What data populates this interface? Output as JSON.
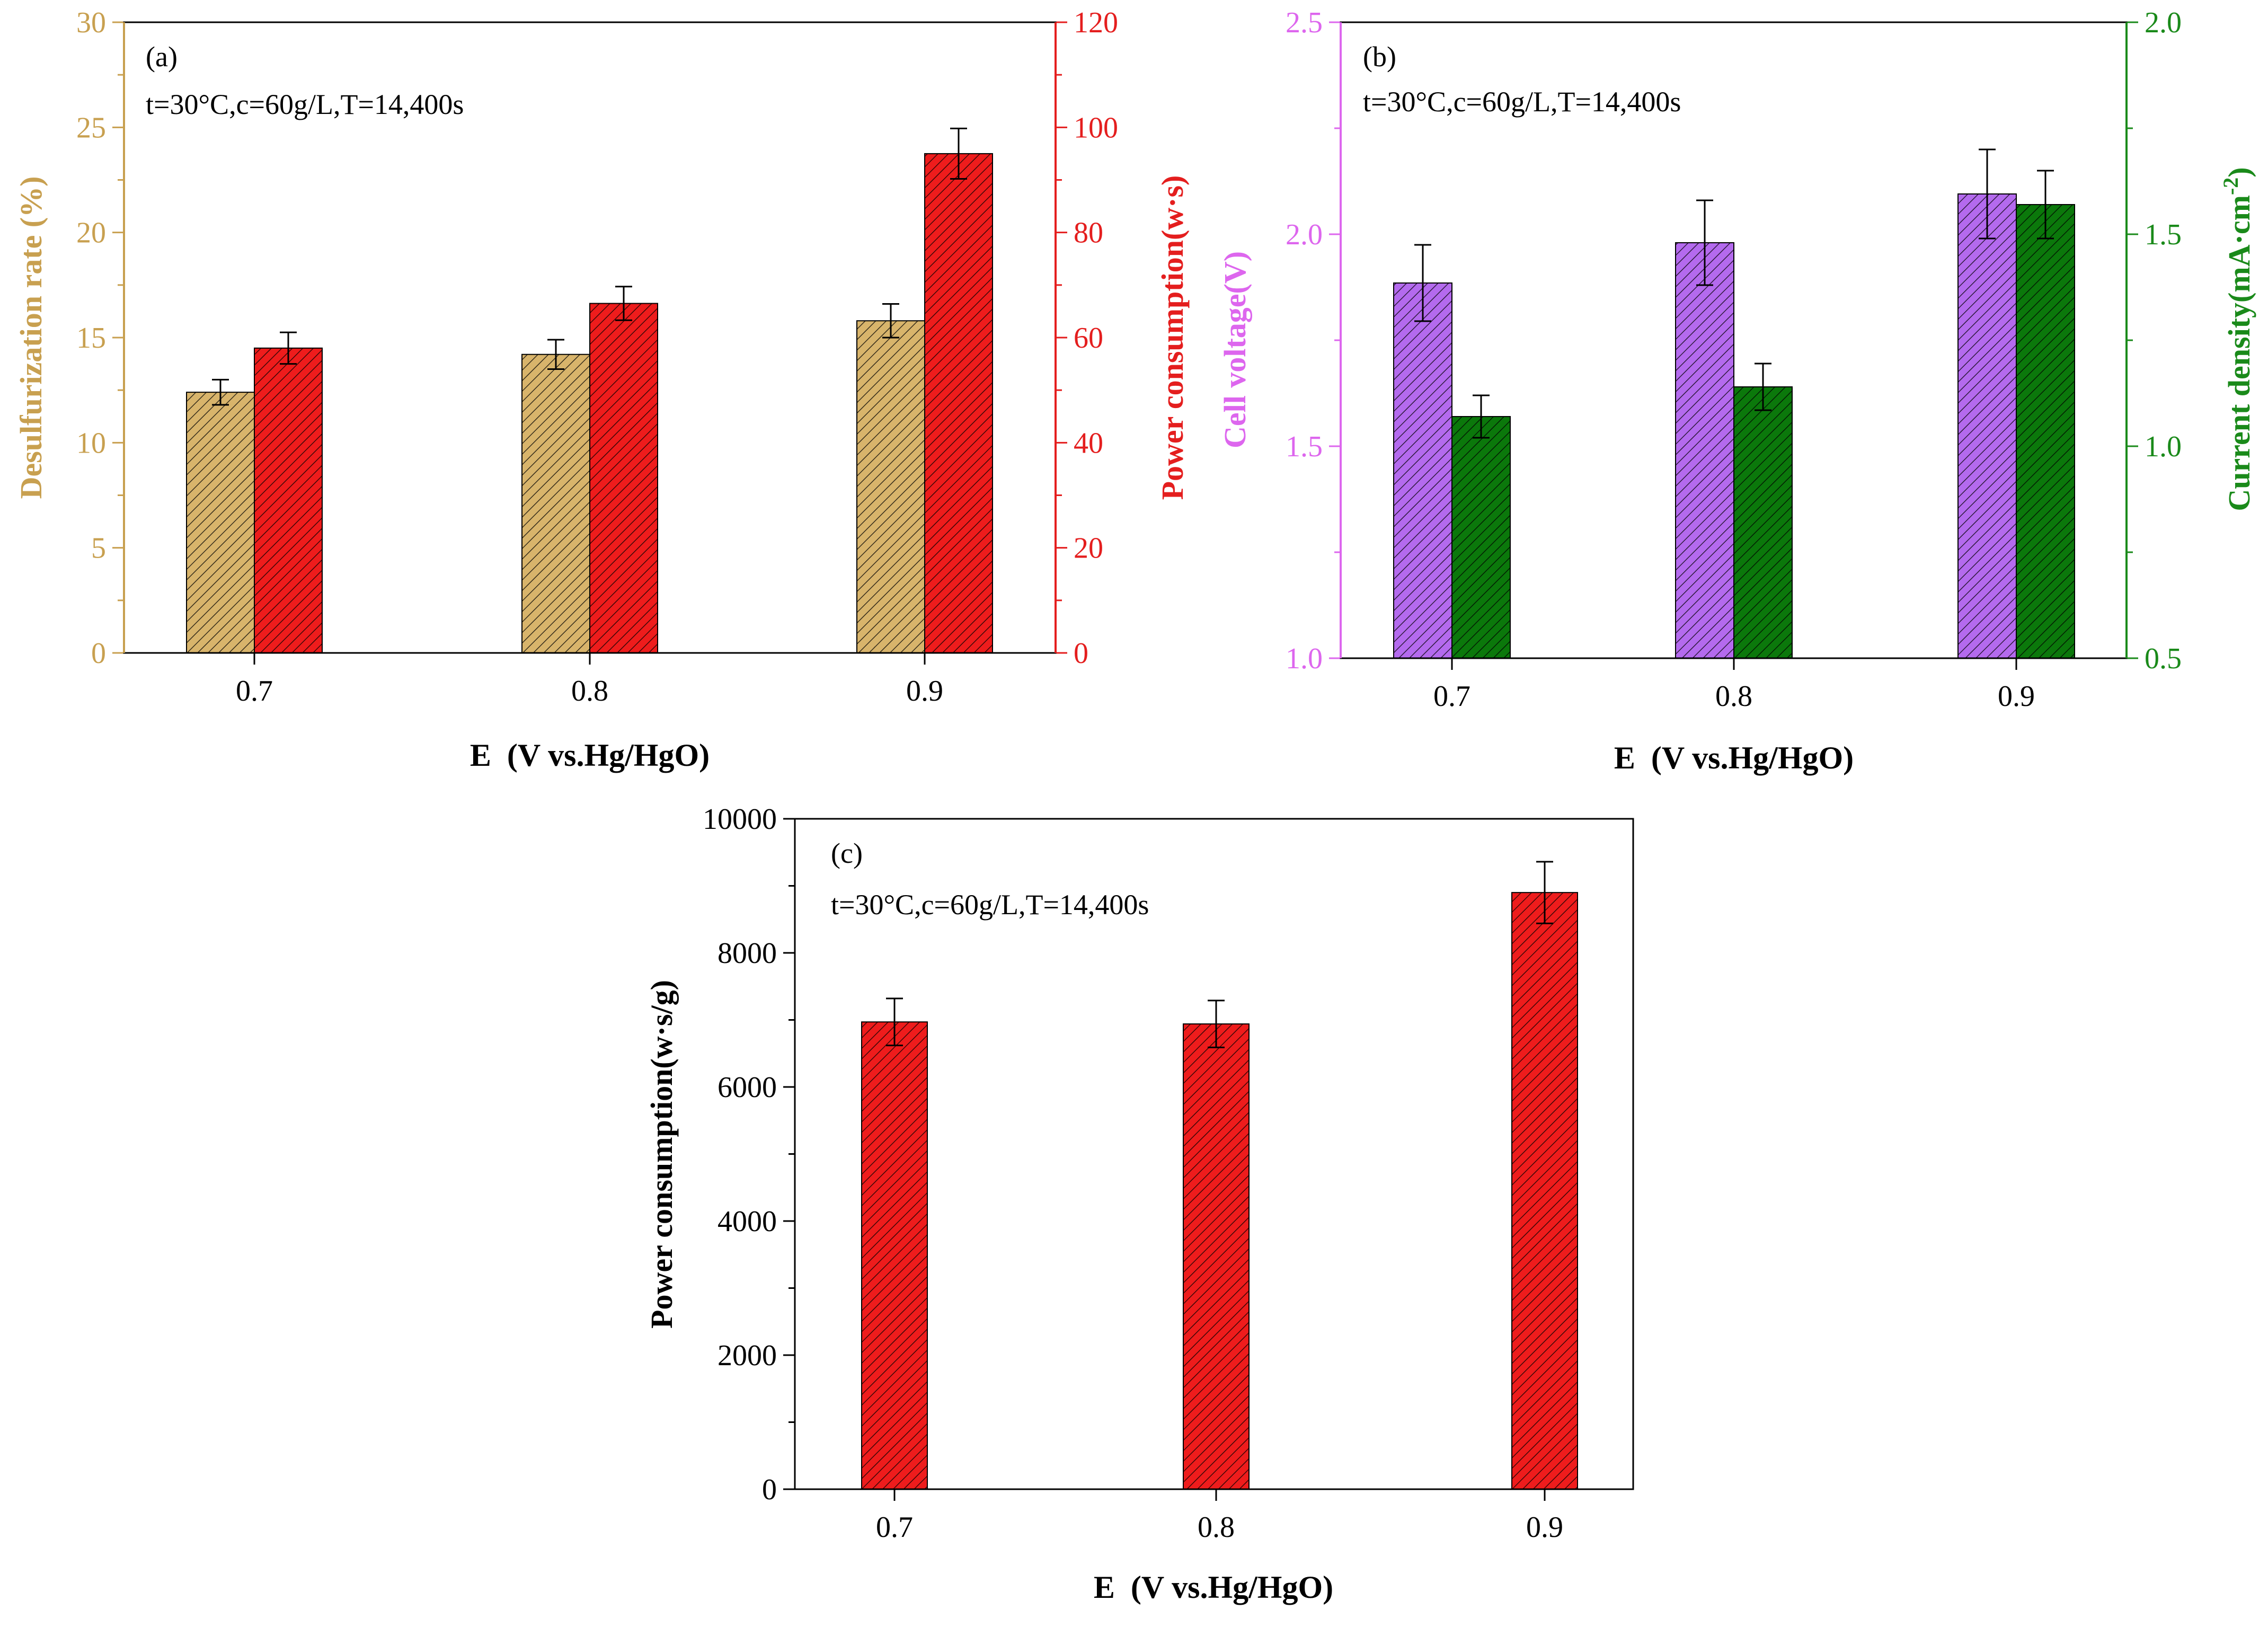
{
  "colors": {
    "desulf": "#D8B46B",
    "power": "#EE1C1C",
    "cell_voltage": "#B46AEE",
    "current_density": "#0B780B",
    "desulf_axis": "#C8A050",
    "power_axis": "#E41E1E",
    "cell_voltage_axis": "#DD66EE",
    "current_density_axis": "#1A8A1A",
    "black": "#000000"
  },
  "chart_data": [
    {
      "id": "a",
      "type": "bar",
      "panel_label": "(a)",
      "condition_text": "t=30°C,c=60g/L,T=14,400s",
      "xlabel": "E  (V vs.Hg/HgO)",
      "categories": [
        "0.7",
        "0.8",
        "0.9"
      ],
      "y_left": {
        "label": "Desulfurization rate (%)",
        "ylim": [
          0,
          30
        ],
        "ticks": [
          "0",
          "5",
          "10",
          "15",
          "20",
          "25",
          "30"
        ]
      },
      "y_right": {
        "label": "Power consumption(w·s)",
        "ylim": [
          0,
          120
        ],
        "ticks": [
          "0",
          "20",
          "40",
          "60",
          "80",
          "100",
          "120"
        ]
      },
      "series": [
        {
          "name": "Desulfurization rate",
          "axis": "left",
          "values": [
            12.4,
            14.2,
            15.8
          ],
          "errors": [
            0.6,
            0.7,
            0.8
          ]
        },
        {
          "name": "Power consumption",
          "axis": "right",
          "values": [
            58,
            66.5,
            95
          ],
          "errors": [
            3,
            3.2,
            4.8
          ]
        }
      ]
    },
    {
      "id": "b",
      "type": "bar",
      "panel_label": "(b)",
      "condition_text": "t=30°C,c=60g/L,T=14,400s",
      "xlabel": "E  (V vs.Hg/HgO)",
      "categories": [
        "0.7",
        "0.8",
        "0.9"
      ],
      "y_left": {
        "label": "Cell voltage(V)",
        "ylim": [
          1.0,
          2.5
        ],
        "ticks": [
          "1.0",
          "1.5",
          "2.0",
          "2.5"
        ]
      },
      "y_right": {
        "label": "Current density(mA·cm",
        "label_sup": "-2",
        "label_end": ")",
        "ylim": [
          0.5,
          2.0
        ],
        "ticks": [
          "0.5",
          "1.0",
          "1.5",
          "2.0"
        ]
      },
      "series": [
        {
          "name": "Cell voltage",
          "axis": "left",
          "values": [
            1.885,
            1.98,
            2.095
          ],
          "errors": [
            0.09,
            0.1,
            0.105
          ]
        },
        {
          "name": "Current density",
          "axis": "right",
          "values": [
            1.07,
            1.14,
            1.57
          ],
          "errors": [
            0.05,
            0.055,
            0.08
          ]
        }
      ]
    },
    {
      "id": "c",
      "type": "bar",
      "panel_label": "(c)",
      "condition_text": "t=30°C,c=60g/L,T=14,400s",
      "xlabel": "E  (V vs.Hg/HgO)",
      "categories": [
        "0.7",
        "0.8",
        "0.9"
      ],
      "y_left": {
        "label": "Power consumption(w·s/g)",
        "ylim": [
          0,
          10000
        ],
        "ticks": [
          "0",
          "2000",
          "4000",
          "6000",
          "8000",
          "10000"
        ]
      },
      "series": [
        {
          "name": "Power consumption",
          "axis": "left",
          "values": [
            6970,
            6940,
            8900
          ],
          "errors": [
            350,
            350,
            460
          ]
        }
      ]
    }
  ]
}
